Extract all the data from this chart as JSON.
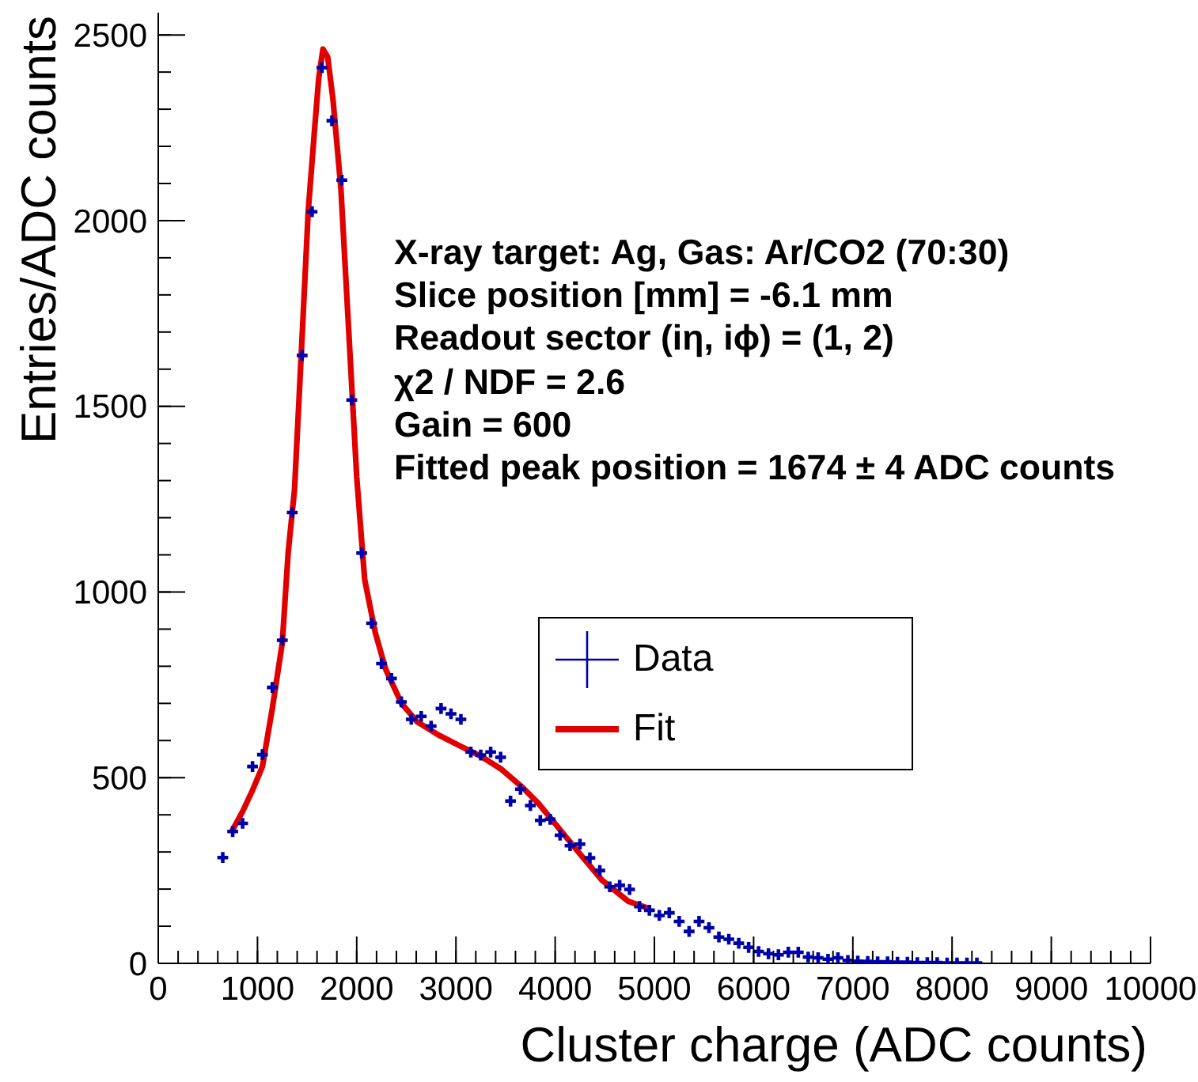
{
  "chart_data": {
    "type": "scatter",
    "xlabel": "Cluster charge (ADC counts)",
    "ylabel": "Entries/ADC counts",
    "annotations": [
      "X-ray target: Ag, Gas: Ar/CO2 (70:30)",
      "Slice position [mm] = -6.1 mm",
      "Readout sector (iη, iϕ) = (1, 2)",
      "χ2 / NDF = 2.6",
      "Gain = 600",
      "Fitted peak position = 1674 ± 4 ADC counts"
    ],
    "series": [
      {
        "name": "Data",
        "color": "#0000aa",
        "marker": "cross",
        "x": [
          650,
          750,
          850,
          950,
          1050,
          1150,
          1250,
          1350,
          1450,
          1550,
          1650,
          1750,
          1850,
          1950,
          2050,
          2150,
          2250,
          2350,
          2450,
          2550,
          2650,
          2750,
          2850,
          2950,
          3050,
          3150,
          3250,
          3350,
          3450,
          3550,
          3650,
          3750,
          3850,
          3950,
          4050,
          4150,
          4250,
          4350,
          4450,
          4550,
          4650,
          4750,
          4850,
          4950,
          5050,
          5150,
          5250,
          5350,
          5450,
          5550,
          5650,
          5750,
          5850,
          5950,
          6050,
          6150,
          6250,
          6350,
          6450,
          6550,
          6650,
          6750,
          6850,
          6950,
          7050,
          7150,
          7250,
          7350,
          7450,
          7550,
          7650,
          7750,
          7850,
          7950,
          8050,
          8150,
          8250
        ],
        "values": [
          285,
          355,
          377,
          530,
          562,
          743,
          870,
          1214,
          1637,
          2024,
          2412,
          2269,
          2109,
          1517,
          1105,
          916,
          807,
          767,
          704,
          657,
          665,
          639,
          686,
          672,
          657,
          569,
          561,
          569,
          555,
          437,
          469,
          425,
          385,
          388,
          345,
          317,
          321,
          284,
          250,
          206,
          210,
          199,
          153,
          143,
          129,
          136,
          113,
          86,
          113,
          96,
          71,
          65,
          54,
          43,
          32,
          26,
          23,
          30,
          30,
          17,
          15,
          11,
          15,
          8,
          6,
          5,
          4,
          4,
          3,
          3,
          2,
          2,
          2,
          1,
          1,
          1,
          1
        ]
      },
      {
        "name": "Fit",
        "type": "line",
        "color": "#e00000",
        "x": [
          750,
          850,
          950,
          1050,
          1150,
          1250,
          1309,
          1373,
          1442,
          1511,
          1574,
          1617,
          1660,
          1708,
          1761,
          1841,
          1920,
          2000,
          2080,
          2186,
          2292,
          2451,
          2611,
          2824,
          3037,
          3249,
          3462,
          3675,
          3834,
          3941,
          4206,
          4472,
          4738,
          4923
        ],
        "values": [
          360,
          409,
          466,
          530,
          687,
          863,
          1105,
          1275,
          1645,
          2024,
          2241,
          2383,
          2462,
          2440,
          2326,
          2085,
          1701,
          1310,
          1034,
          892,
          792,
          700,
          650,
          615,
          586,
          558,
          522,
          473,
          430,
          395,
          309,
          224,
          167,
          150
        ]
      }
    ],
    "xlim": [
      0,
      10000
    ],
    "ylim": [
      0,
      2560
    ],
    "xticks": [
      0,
      {
        "value": 200,
        "label": null
      },
      {
        "value": 400,
        "label": null
      },
      {
        "value": 600,
        "label": null
      },
      {
        "value": 800,
        "label": null
      },
      1000,
      {
        "value": 1200,
        "label": null
      },
      {
        "value": 1400,
        "label": null
      },
      {
        "value": 1600,
        "label": null
      },
      {
        "value": 1800,
        "label": null
      },
      2000,
      {
        "value": 2200,
        "label": null
      },
      {
        "value": 2400,
        "label": null
      },
      {
        "value": 2600,
        "label": null
      },
      {
        "value": 2800,
        "label": null
      },
      3000,
      {
        "value": 3200,
        "label": null
      },
      {
        "value": 3400,
        "label": null
      },
      {
        "value": 3600,
        "label": null
      },
      {
        "value": 3800,
        "label": null
      },
      4000,
      {
        "value": 4200,
        "label": null
      },
      {
        "value": 4400,
        "label": null
      },
      {
        "value": 4600,
        "label": null
      },
      {
        "value": 4800,
        "label": null
      },
      5000,
      {
        "value": 5200,
        "label": null
      },
      {
        "value": 5400,
        "label": null
      },
      {
        "value": 5600,
        "label": null
      },
      {
        "value": 5800,
        "label": null
      },
      6000,
      {
        "value": 6200,
        "label": null
      },
      {
        "value": 6400,
        "label": null
      },
      {
        "value": 6600,
        "label": null
      },
      {
        "value": 6800,
        "label": null
      },
      7000,
      {
        "value": 7200,
        "label": null
      },
      {
        "value": 7400,
        "label": null
      },
      {
        "value": 7600,
        "label": null
      },
      {
        "value": 7800,
        "label": null
      },
      8000,
      {
        "value": 8200,
        "label": null
      },
      {
        "value": 8400,
        "label": null
      },
      {
        "value": 8600,
        "label": null
      },
      {
        "value": 8800,
        "label": null
      },
      9000,
      {
        "value": 9200,
        "label": null
      },
      {
        "value": 9400,
        "label": null
      },
      {
        "value": 9600,
        "label": null
      },
      {
        "value": 9800,
        "label": null
      },
      10000
    ],
    "yticks": [
      0,
      {
        "value": 100,
        "label": null
      },
      {
        "value": 200,
        "label": null
      },
      {
        "value": 300,
        "label": null
      },
      {
        "value": 400,
        "label": null
      },
      500,
      {
        "value": 600,
        "label": null
      },
      {
        "value": 700,
        "label": null
      },
      {
        "value": 800,
        "label": null
      },
      {
        "value": 900,
        "label": null
      },
      1000,
      {
        "value": 1100,
        "label": null
      },
      {
        "value": 1200,
        "label": null
      },
      {
        "value": 1300,
        "label": null
      },
      {
        "value": 1400,
        "label": null
      },
      1500,
      {
        "value": 1600,
        "label": null
      },
      {
        "value": 1700,
        "label": null
      },
      {
        "value": 1800,
        "label": null
      },
      {
        "value": 1900,
        "label": null
      },
      2000,
      {
        "value": 2100,
        "label": null
      },
      {
        "value": 2200,
        "label": null
      },
      {
        "value": 2300,
        "label": null
      },
      {
        "value": 2400,
        "label": null
      },
      2500
    ],
    "legend": "right"
  }
}
